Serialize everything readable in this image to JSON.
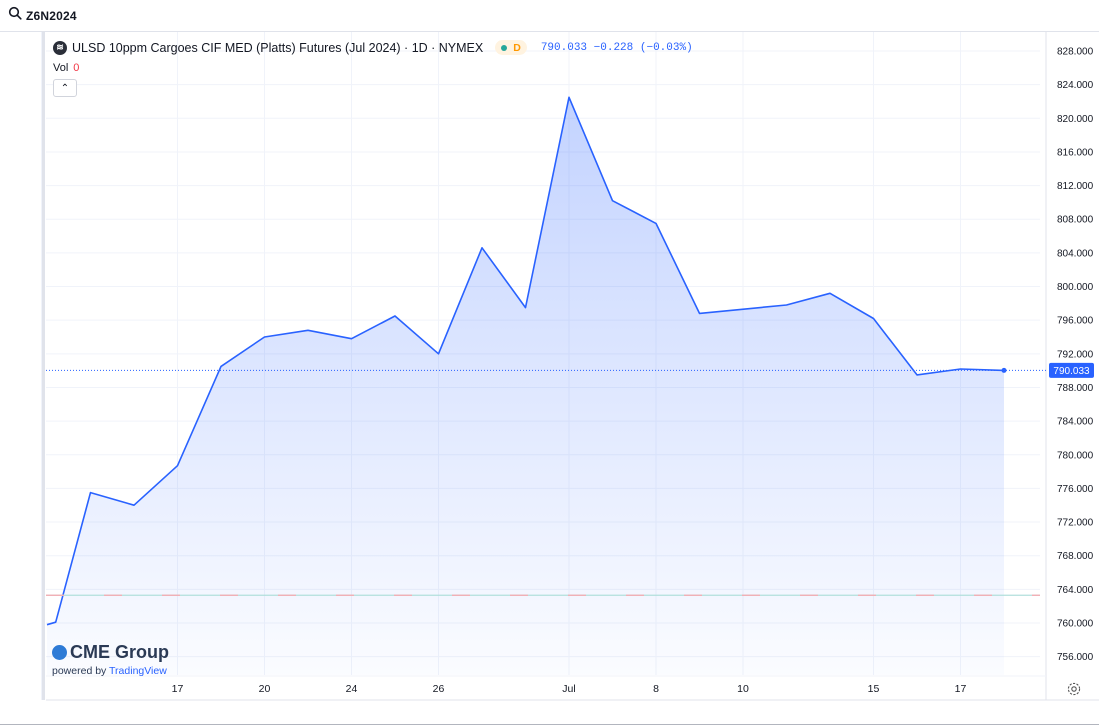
{
  "symbol_bar": {
    "search_icon": "search-icon",
    "symbol": "Z6N2024"
  },
  "legend": {
    "title": "ULSD 10ppm Cargoes CIF MED (Platts) Futures (Jul 2024) · 1D · NYMEX",
    "logo_glyph": "≋",
    "status_letter": "D",
    "last": "790.033",
    "change": "−0.228 (−0.03%)"
  },
  "volume": {
    "label": "Vol",
    "value": "0"
  },
  "collapse_glyph": "⌃",
  "branding": {
    "name": "CME Group",
    "powered": "powered by",
    "tv": "TradingView"
  },
  "colors": {
    "line": "#2962ff",
    "fill_top": "#2962ff",
    "grid": "#f0f3fa",
    "axis_text": "#131722",
    "accent": "#2962ff"
  },
  "chart_data": {
    "type": "area",
    "title": "ULSD 10ppm Cargoes CIF MED (Platts) Futures (Jul 2024) · 1D · NYMEX",
    "ylim": [
      754,
      830
    ],
    "y_ticks": [
      828,
      824,
      820,
      816,
      812,
      808,
      804,
      800,
      796,
      792,
      788,
      784,
      780,
      776,
      772,
      768,
      764,
      760,
      756
    ],
    "y_tick_labels": [
      "828.000",
      "824.000",
      "820.000",
      "816.000",
      "812.000",
      "808.000",
      "804.000",
      "800.000",
      "796.000",
      "792.000",
      "788.000",
      "784.000",
      "780.000",
      "776.000",
      "772.000",
      "768.000",
      "764.000",
      "760.000",
      "756.000"
    ],
    "x_tick_labels": [
      "17",
      "20",
      "24",
      "26",
      "Jul",
      "8",
      "10",
      "15",
      "17"
    ],
    "x_tick_index": [
      3,
      5,
      7,
      9,
      12,
      14,
      16,
      19,
      21
    ],
    "points": [
      {
        "i": 0,
        "v": 759.8
      },
      {
        "i": 0.2,
        "v": 760.1
      },
      {
        "i": 1,
        "v": 775.5
      },
      {
        "i": 2,
        "v": 774.0
      },
      {
        "i": 3,
        "v": 778.7
      },
      {
        "i": 4,
        "v": 790.5
      },
      {
        "i": 5,
        "v": 794.0
      },
      {
        "i": 6,
        "v": 794.8
      },
      {
        "i": 7,
        "v": 793.8
      },
      {
        "i": 8,
        "v": 796.5
      },
      {
        "i": 9,
        "v": 792.0
      },
      {
        "i": 10,
        "v": 804.6
      },
      {
        "i": 11,
        "v": 797.5
      },
      {
        "i": 12,
        "v": 822.5
      },
      {
        "i": 13,
        "v": 810.2
      },
      {
        "i": 14,
        "v": 807.5
      },
      {
        "i": 15,
        "v": 796.8
      },
      {
        "i": 17,
        "v": 797.8
      },
      {
        "i": 18,
        "v": 799.2
      },
      {
        "i": 19,
        "v": 796.2
      },
      {
        "i": 20,
        "v": 789.5
      },
      {
        "i": 21,
        "v": 790.2
      },
      {
        "i": 22,
        "v": 790.033
      }
    ],
    "last_value": 790.033,
    "last_label": "790.033",
    "reference_line": 763.3
  }
}
